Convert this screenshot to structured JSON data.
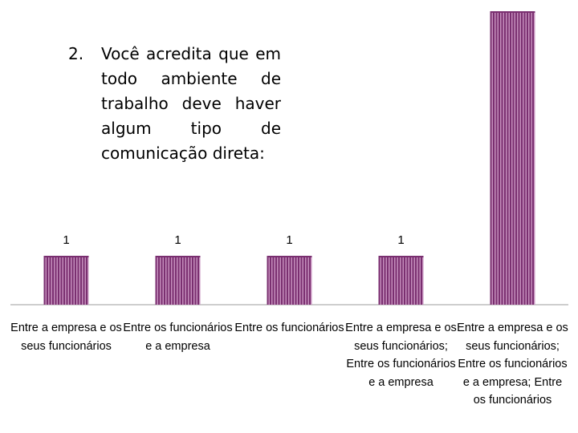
{
  "title": {
    "number": "2.",
    "text": "Você acredita que em todo ambiente de trabalho deve haver algum tipo de comunicação direta:"
  },
  "colors": {
    "bar": "#7a2f70",
    "bar_stripe": "#c58fbd",
    "axis": "#9e9e9e"
  },
  "chart_data": {
    "type": "bar",
    "title": "Você acredita que em todo ambiente de trabalho deve haver algum tipo de comunicação direta:",
    "categories": [
      "Entre a empresa e os seus funcionários",
      "Entre os funcionários e a empresa",
      "Entre os funcionários",
      "Entre a empresa e os seus funcionários; Entre os funcionários e a empresa",
      "Entre a empresa e os seus funcionários; Entre os funcionários e a empresa; Entre os funcionários"
    ],
    "values": [
      1,
      1,
      1,
      1,
      6
    ],
    "data_labels": [
      "1",
      "1",
      "1",
      "1",
      ""
    ],
    "grid": false,
    "legend": "none"
  }
}
